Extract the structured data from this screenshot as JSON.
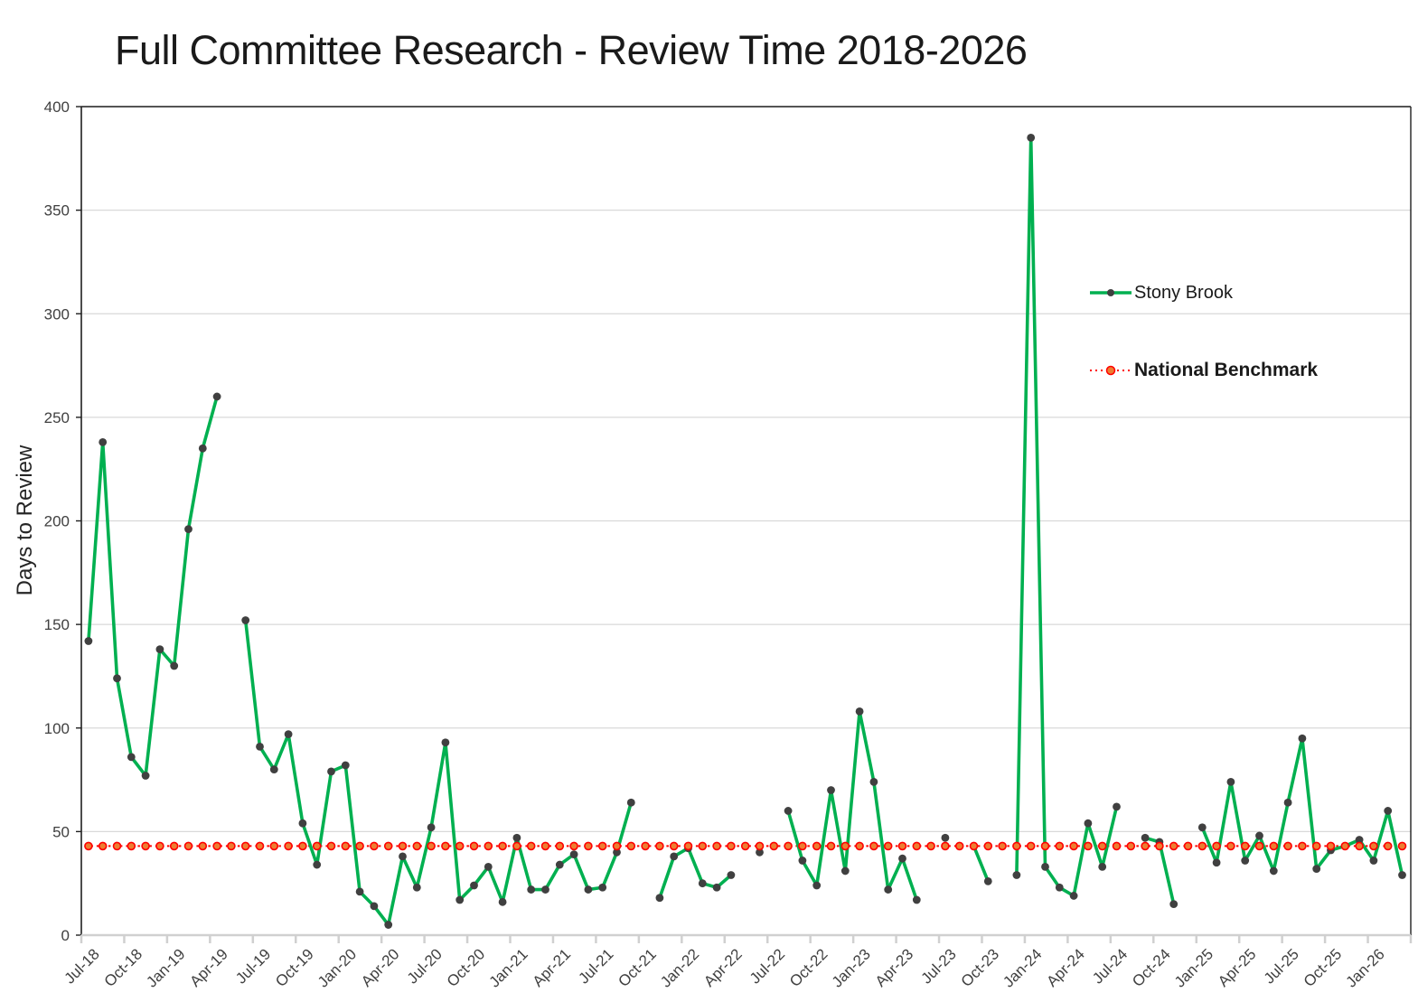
{
  "title": "Full Committee Research - Review Time 2018-2026",
  "legend": {
    "series_label": "Stony Brook",
    "benchmark_label": "National Benchmark"
  },
  "chart_data": {
    "type": "line",
    "title": "Full Committee Research - Review Time 2018-2026",
    "xlabel": "",
    "ylabel": "Days to Review",
    "ylim": [
      0,
      400
    ],
    "ytick_step": 50,
    "grid": true,
    "legend_position": "right-center",
    "x_tick_labels": [
      "Jul-18",
      "Oct-18",
      "Jan-19",
      "Apr-19",
      "Jul-19",
      "Oct-19",
      "Jan-20",
      "Apr-20",
      "Jul-20",
      "Oct-20",
      "Jan-21",
      "Apr-21",
      "Jul-21",
      "Oct-21",
      "Jan-22",
      "Apr-22",
      "Jul-22",
      "Oct-22",
      "Jan-23",
      "Apr-23",
      "Jul-23",
      "Oct-23",
      "Jan-24",
      "Apr-24",
      "Jul-24",
      "Oct-24",
      "Jan-25",
      "Apr-25",
      "Jul-25",
      "Oct-25",
      "Jan-26"
    ],
    "months": [
      "Jul-18",
      "Aug-18",
      "Sep-18",
      "Oct-18",
      "Nov-18",
      "Dec-18",
      "Jan-19",
      "Feb-19",
      "Mar-19",
      "Apr-19",
      "May-19",
      "Jun-19",
      "Jul-19",
      "Aug-19",
      "Sep-19",
      "Oct-19",
      "Nov-19",
      "Dec-19",
      "Jan-20",
      "Feb-20",
      "Mar-20",
      "Apr-20",
      "May-20",
      "Jun-20",
      "Jul-20",
      "Aug-20",
      "Sep-20",
      "Oct-20",
      "Nov-20",
      "Dec-20",
      "Jan-21",
      "Feb-21",
      "Mar-21",
      "Apr-21",
      "May-21",
      "Jun-21",
      "Jul-21",
      "Aug-21",
      "Sep-21",
      "Oct-21",
      "Nov-21",
      "Dec-21",
      "Jan-22",
      "Feb-22",
      "Mar-22",
      "Apr-22",
      "May-22",
      "Jun-22",
      "Jul-22",
      "Aug-22",
      "Sep-22",
      "Oct-22",
      "Nov-22",
      "Dec-22",
      "Jan-23",
      "Feb-23",
      "Mar-23",
      "Apr-23",
      "May-23",
      "Jun-23",
      "Jul-23",
      "Aug-23",
      "Sep-23",
      "Oct-23",
      "Nov-23",
      "Dec-23",
      "Jan-24",
      "Feb-24",
      "Mar-24",
      "Apr-24",
      "May-24",
      "Jun-24",
      "Jul-24",
      "Aug-24",
      "Sep-24",
      "Oct-24",
      "Nov-24",
      "Dec-24",
      "Jan-25",
      "Feb-25",
      "Mar-25",
      "Apr-25",
      "May-25",
      "Jun-25",
      "Jul-25",
      "Aug-25",
      "Sep-25",
      "Oct-25",
      "Nov-25",
      "Dec-25",
      "Jan-26",
      "Feb-26",
      "Mar-26"
    ],
    "series": [
      {
        "name": "Stony Brook",
        "values": [
          142,
          238,
          124,
          86,
          77,
          138,
          130,
          196,
          235,
          260,
          null,
          152,
          91,
          80,
          97,
          54,
          34,
          79,
          82,
          21,
          14,
          5,
          38,
          23,
          52,
          93,
          17,
          24,
          33,
          16,
          47,
          22,
          22,
          34,
          39,
          22,
          23,
          40,
          64,
          null,
          18,
          38,
          42,
          25,
          23,
          29,
          null,
          40,
          null,
          60,
          36,
          24,
          70,
          31,
          108,
          74,
          22,
          37,
          17,
          null,
          47,
          null,
          43,
          26,
          null,
          29,
          385,
          33,
          23,
          19,
          54,
          33,
          62,
          null,
          47,
          45,
          15,
          null,
          52,
          35,
          74,
          36,
          48,
          31,
          64,
          95,
          32,
          41,
          43,
          46,
          36,
          60,
          29
        ]
      }
    ],
    "benchmark": {
      "name": "National Benchmark",
      "value": 43
    },
    "colors": {
      "series_line": "#00B050",
      "series_marker": "#404040",
      "benchmark_line": "#FF0000",
      "benchmark_marker_fill": "#ED7D31",
      "gridline": "#d9d9d9",
      "axis_dark": "#1f1f1f",
      "axis_light": "#d0d0d0",
      "tick_text": "#404040"
    }
  }
}
